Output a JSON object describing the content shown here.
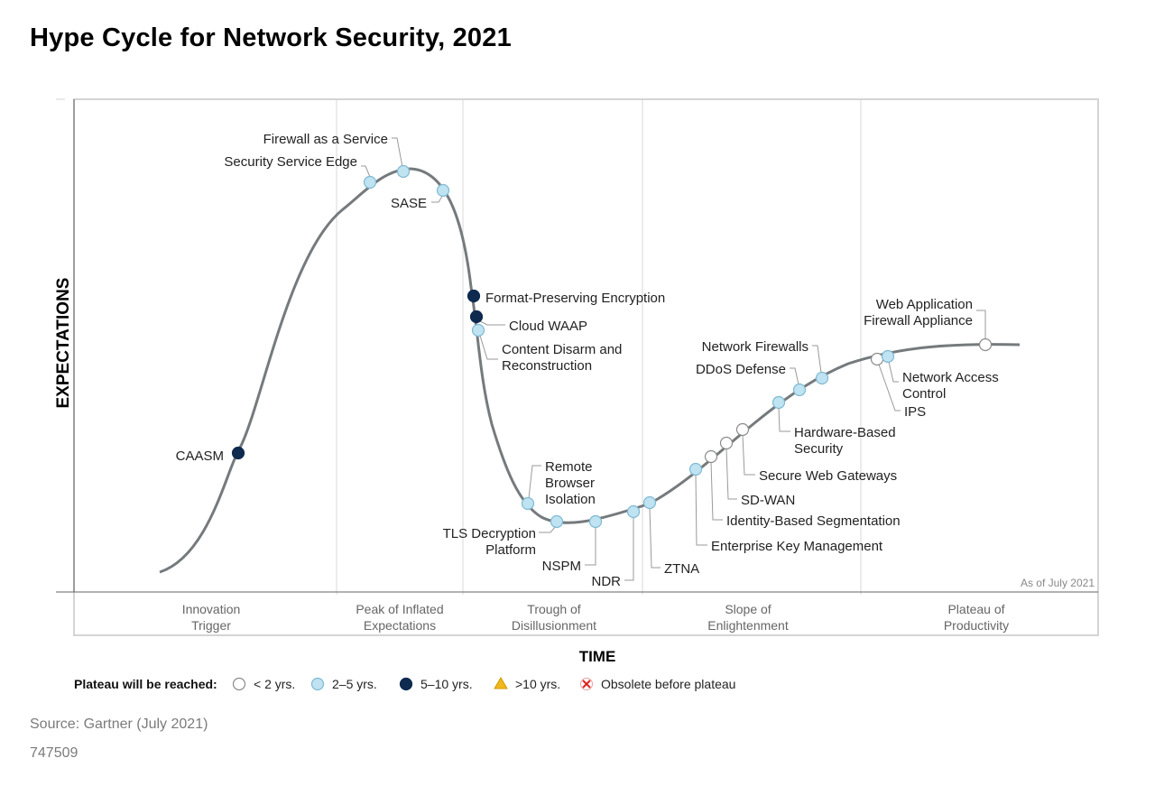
{
  "title": "Hype Cycle for Network Security, 2021",
  "source": "Source: Gartner (July 2021)",
  "doc_id": "747509",
  "colors": {
    "curve": "#757a7d",
    "lt2": "#ffffff",
    "y2to5": "#bfe3f1",
    "y5to10": "#0e2a4f",
    "gt10": "#f1b81c",
    "obsolete": "#e0201b"
  },
  "chart_data": {
    "type": "hype-cycle",
    "xlabel": "TIME",
    "ylabel": "EXPECTATIONS",
    "as_of": "As of July 2021",
    "phases": [
      {
        "name": "Innovation Trigger",
        "lines": [
          "Innovation",
          "Trigger"
        ]
      },
      {
        "name": "Peak of Inflated Expectations",
        "lines": [
          "Peak of Inflated",
          "Expectations"
        ]
      },
      {
        "name": "Trough of Disillusionment",
        "lines": [
          "Trough of",
          "Disillusionment"
        ]
      },
      {
        "name": "Slope of Enlightenment",
        "lines": [
          "Slope of",
          "Enlightenment"
        ]
      },
      {
        "name": "Plateau of Productivity",
        "lines": [
          "Plateau of",
          "Productivity"
        ]
      }
    ],
    "legend": {
      "title": "Plateau will be reached:",
      "items": [
        {
          "key": "lt2",
          "label": "< 2 yrs."
        },
        {
          "key": "y2to5",
          "label": "2–5 yrs."
        },
        {
          "key": "y5to10",
          "label": "5–10 yrs."
        },
        {
          "key": "gt10",
          "label": ">10 yrs."
        },
        {
          "key": "obsolete",
          "label": "Obsolete before plateau"
        }
      ]
    },
    "technologies": [
      {
        "lines": [
          "CAASM"
        ],
        "category": "y5to10"
      },
      {
        "lines": [
          "Security Service Edge"
        ],
        "category": "y2to5"
      },
      {
        "lines": [
          "Firewall as a Service"
        ],
        "category": "y2to5"
      },
      {
        "lines": [
          "SASE"
        ],
        "category": "y2to5"
      },
      {
        "lines": [
          "Format-Preserving Encryption"
        ],
        "category": "y5to10"
      },
      {
        "lines": [
          "Cloud WAAP"
        ],
        "category": "y5to10"
      },
      {
        "lines": [
          "Content Disarm and",
          "Reconstruction"
        ],
        "category": "y2to5"
      },
      {
        "lines": [
          "Remote",
          "Browser",
          "Isolation"
        ],
        "category": "y2to5"
      },
      {
        "lines": [
          "TLS Decryption",
          "Platform"
        ],
        "category": "y2to5"
      },
      {
        "lines": [
          "NSPM"
        ],
        "category": "y2to5"
      },
      {
        "lines": [
          "NDR"
        ],
        "category": "y2to5"
      },
      {
        "lines": [
          "ZTNA"
        ],
        "category": "y2to5"
      },
      {
        "lines": [
          "Enterprise Key Management"
        ],
        "category": "y2to5"
      },
      {
        "lines": [
          "Identity-Based Segmentation"
        ],
        "category": "lt2"
      },
      {
        "lines": [
          "SD-WAN"
        ],
        "category": "lt2"
      },
      {
        "lines": [
          "Secure Web Gateways"
        ],
        "category": "lt2"
      },
      {
        "lines": [
          "Hardware-Based",
          "Security"
        ],
        "category": "y2to5"
      },
      {
        "lines": [
          "DDoS Defense"
        ],
        "category": "y2to5"
      },
      {
        "lines": [
          "Network Firewalls"
        ],
        "category": "y2to5"
      },
      {
        "lines": [
          "IPS"
        ],
        "category": "lt2"
      },
      {
        "lines": [
          "Network Access",
          "Control"
        ],
        "category": "y2to5"
      },
      {
        "lines": [
          "Web Application",
          "Firewall Appliance"
        ],
        "category": "lt2"
      }
    ]
  }
}
